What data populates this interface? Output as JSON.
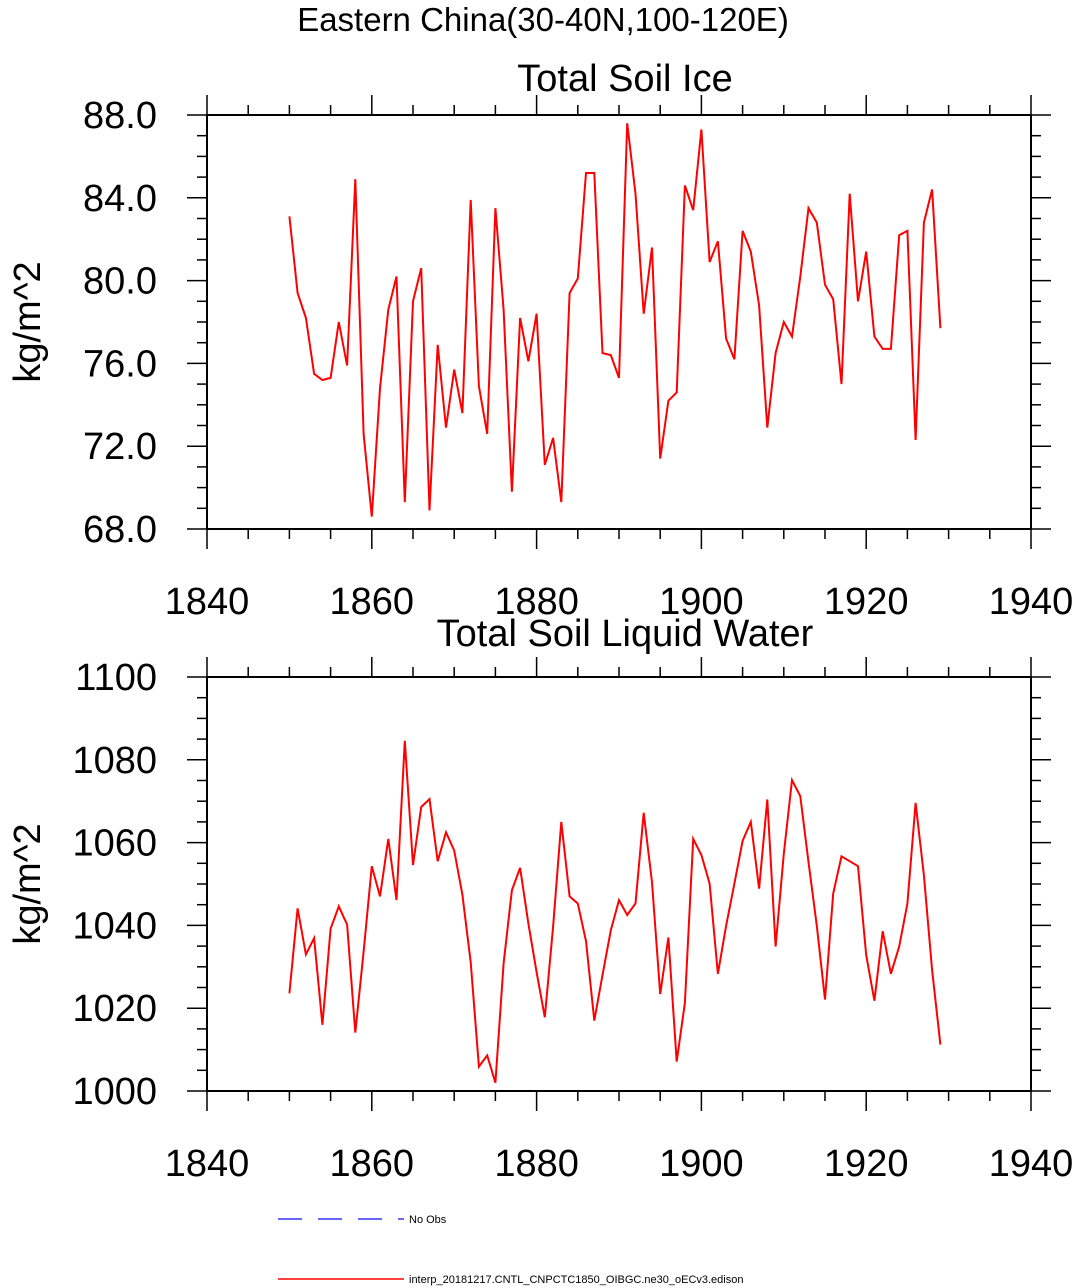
{
  "figure_title": "Eastern China(30-40N,100-120E)",
  "colors": {
    "series": "#ff0000",
    "obs": "#3333ff",
    "axis": "#000000"
  },
  "legend": [
    {
      "label": "No Obs",
      "color": "#3333ff",
      "style": "dashed"
    },
    {
      "label": "interp_20181217.CNTL_CNPCTC1850_OIBGC.ne30_oECv3.edison",
      "color": "#ff0000",
      "style": "solid"
    }
  ],
  "chart_data": [
    {
      "type": "line",
      "title": "Total Soil Ice",
      "xlabel": "",
      "ylabel": "kg/m^2",
      "xlim": [
        1840,
        1940
      ],
      "ylim": [
        68,
        88
      ],
      "xticks": [
        "1840",
        "1860",
        "1880",
        "1900",
        "1920",
        "1940"
      ],
      "yticks": [
        "68.0",
        "72.0",
        "76.0",
        "80.0",
        "84.0",
        "88.0"
      ],
      "x_start": 1850,
      "series": [
        {
          "name": "interp_20181217.CNTL_CNPCTC1850_OIBGC.ne30_oECv3.edison",
          "values": [
            83.1,
            79.4,
            78.2,
            75.5,
            75.2,
            75.3,
            78.0,
            75.9,
            84.9,
            72.6,
            68.6,
            74.8,
            78.6,
            80.2,
            69.3,
            79.0,
            80.6,
            68.9,
            76.9,
            72.9,
            75.7,
            73.6,
            83.9,
            74.9,
            72.6,
            83.5,
            78.6,
            69.8,
            78.2,
            76.1,
            78.4,
            71.1,
            72.4,
            69.3,
            79.4,
            80.1,
            85.2,
            85.2,
            76.5,
            76.4,
            75.3,
            87.6,
            84.2,
            78.4,
            81.6,
            71.4,
            74.2,
            74.6,
            84.6,
            83.4,
            87.3,
            80.9,
            81.9,
            77.2,
            76.2,
            82.4,
            81.4,
            78.8,
            72.9,
            76.5,
            78.0,
            77.3,
            80.2,
            83.5,
            82.8,
            79.8,
            79.1,
            75.0,
            84.2,
            79.0,
            81.4,
            77.3,
            76.7,
            76.7,
            82.2,
            82.4,
            72.3,
            82.8,
            84.4,
            77.7
          ]
        }
      ]
    },
    {
      "type": "line",
      "title": "Total Soil Liquid Water",
      "xlabel": "",
      "ylabel": "kg/m^2",
      "xlim": [
        1840,
        1940
      ],
      "ylim": [
        1000,
        1100
      ],
      "xticks": [
        "1840",
        "1860",
        "1880",
        "1900",
        "1920",
        "1940"
      ],
      "yticks": [
        "1000",
        "1020",
        "1040",
        "1060",
        "1080",
        "1100"
      ],
      "x_start": 1850,
      "series": [
        {
          "name": "interp_20181217.CNTL_CNPCTC1850_OIBGC.ne30_oECv3.edison",
          "values": [
            1023.6,
            1044.1,
            1033.0,
            1036.9,
            1016.0,
            1039.2,
            1044.6,
            1040.2,
            1014.1,
            1033.6,
            1054.3,
            1047.0,
            1060.9,
            1046.1,
            1084.6,
            1054.6,
            1068.6,
            1070.5,
            1055.5,
            1062.5,
            1058.1,
            1047.4,
            1031.1,
            1005.9,
            1008.6,
            1002.0,
            1030.8,
            1048.5,
            1053.9,
            1040.4,
            1028.7,
            1017.8,
            1039.7,
            1065.0,
            1047.0,
            1045.3,
            1036.2,
            1017.0,
            1028.0,
            1038.8,
            1046.1,
            1042.5,
            1045.3,
            1067.2,
            1050.4,
            1023.4,
            1037.1,
            1007.1,
            1021.3,
            1060.9,
            1057.0,
            1050.1,
            1028.3,
            1039.9,
            1050.1,
            1060.4,
            1065.0,
            1048.9,
            1070.4,
            1034.9,
            1057.3,
            1075.1,
            1071.2,
            1055.3,
            1039.9,
            1022.1,
            1047.7,
            1056.7,
            1055.5,
            1054.3,
            1032.8,
            1021.8,
            1038.6,
            1028.3,
            1034.9,
            1045.3,
            1069.6,
            1052.1,
            1029.2,
            1011.2
          ]
        }
      ]
    }
  ]
}
